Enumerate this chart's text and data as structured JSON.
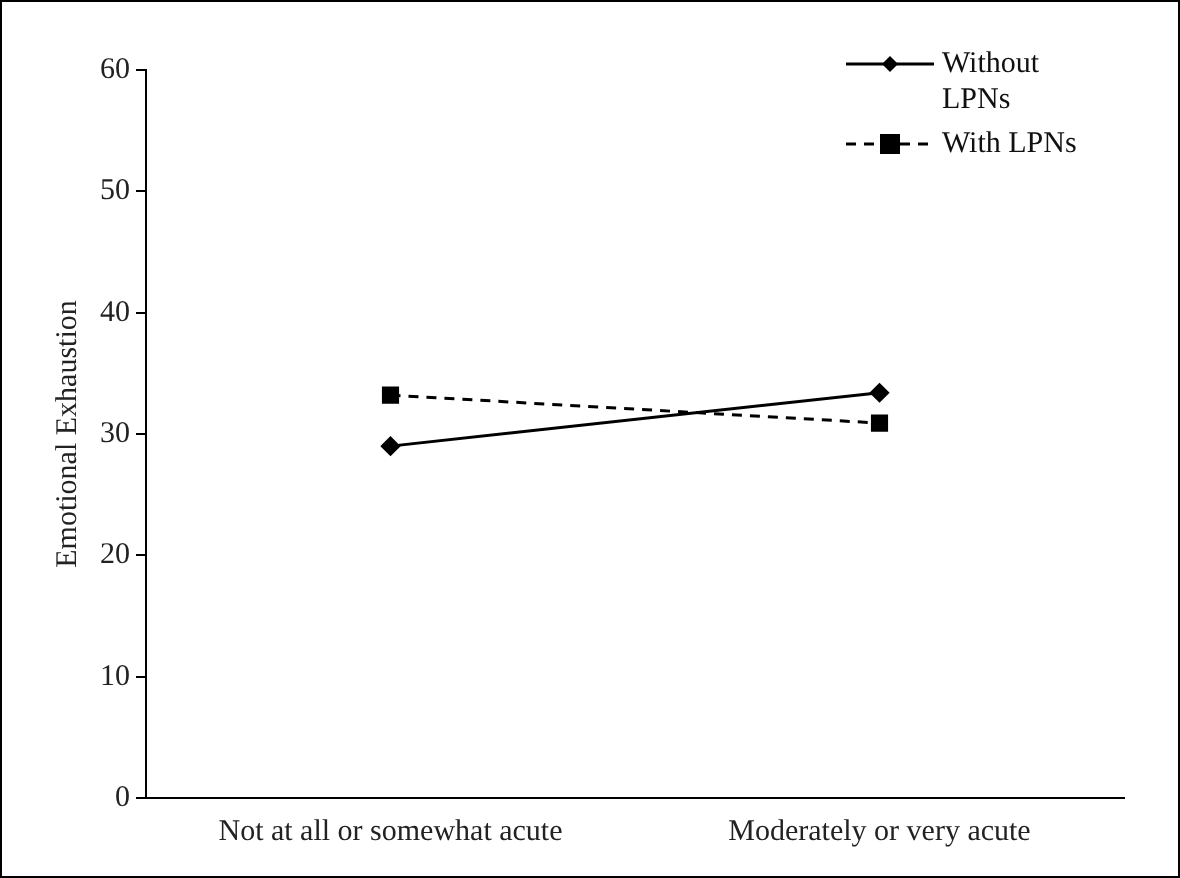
{
  "chart_data": {
    "type": "line",
    "ylabel": "Emotional Exhaustion",
    "categories": [
      "Not at all or somewhat acute",
      "Moderately or very acute"
    ],
    "series": [
      {
        "name": "Without LPNs",
        "color": "#000000",
        "values": [
          29.0,
          33.4
        ],
        "marker": "diamond",
        "line_style": "solid"
      },
      {
        "name": "With LPNs",
        "color": "#000000",
        "values": [
          33.2,
          30.9
        ],
        "marker": "square",
        "line_style": "dashed"
      }
    ],
    "ylim": [
      0,
      60
    ],
    "yticks": [
      0,
      10,
      20,
      30,
      40,
      50,
      60
    ],
    "grid": false,
    "legend": "top right"
  }
}
